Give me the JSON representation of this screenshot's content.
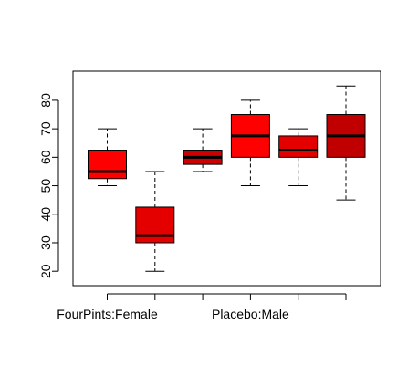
{
  "chart_data": {
    "type": "box",
    "title": "",
    "xlabel": "",
    "ylabel": "",
    "ylim": [
      17.5,
      87.5
    ],
    "yticks": [
      20,
      30,
      40,
      50,
      60,
      70,
      80
    ],
    "grid": false,
    "x_tick_labels_shown": [
      "FourPints:Female",
      "",
      "",
      "Placebo:Male",
      "",
      ""
    ],
    "boxes": [
      {
        "min": 50,
        "q1": 52.5,
        "median": 55,
        "q3": 62.5,
        "max": 70,
        "color": "#ff0000"
      },
      {
        "min": 20,
        "q1": 30,
        "median": 32.5,
        "q3": 42.5,
        "max": 55,
        "color": "#e50000"
      },
      {
        "min": 55,
        "q1": 57.5,
        "median": 60,
        "q3": 62.5,
        "max": 70,
        "color": "#cc0000"
      },
      {
        "min": 50,
        "q1": 60,
        "median": 67.5,
        "q3": 75,
        "max": 80,
        "color": "#ff0000"
      },
      {
        "min": 50,
        "q1": 60,
        "median": 62.5,
        "q3": 67.5,
        "max": 70,
        "color": "#e50000"
      },
      {
        "min": 45,
        "q1": 60,
        "median": 67.5,
        "q3": 75,
        "max": 85,
        "color": "#c00000"
      }
    ]
  }
}
